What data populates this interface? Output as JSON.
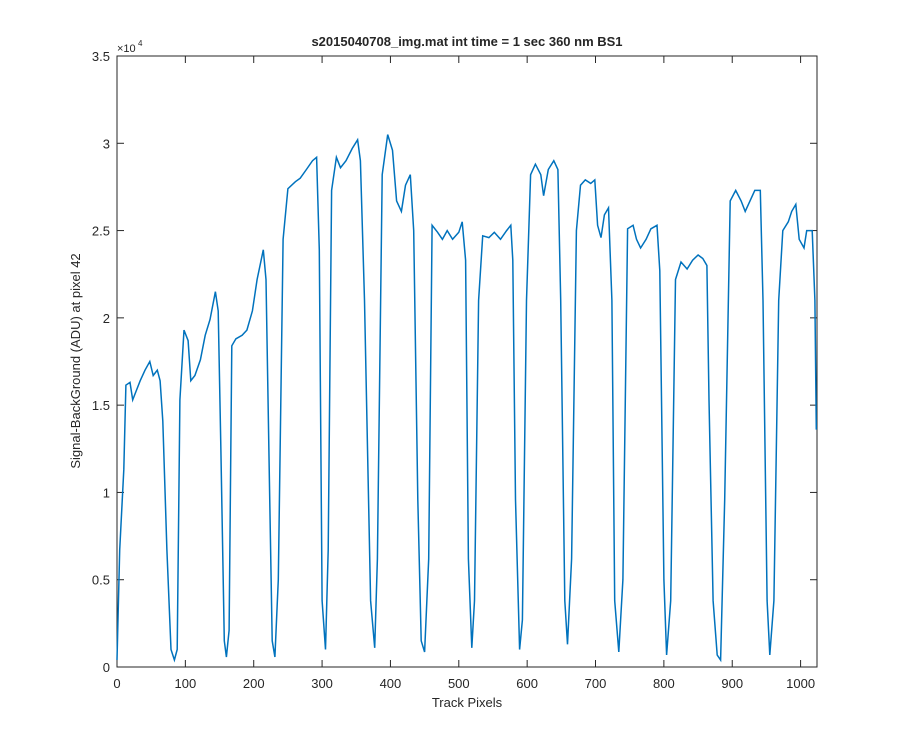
{
  "chart_data": {
    "type": "line",
    "title": "s2015040708_img.mat int time = 1 sec  360 nm BS1",
    "x_label": "Track Pixels",
    "y_label": "Signal-BackGround (ADU) at pixel 42",
    "y_multiplier": "×10",
    "y_multiplier_exponent": "4",
    "xlim": [
      0,
      1024
    ],
    "ylim": [
      0,
      35000
    ],
    "xticks": [
      0,
      100,
      200,
      300,
      400,
      500,
      600,
      700,
      800,
      900,
      1000
    ],
    "yticks": [
      {
        "value": 0,
        "label": "0"
      },
      {
        "value": 5000,
        "label": "0.5"
      },
      {
        "value": 10000,
        "label": "1"
      },
      {
        "value": 15000,
        "label": "1.5"
      },
      {
        "value": 20000,
        "label": "2"
      },
      {
        "value": 25000,
        "label": "2.5"
      },
      {
        "value": 30000,
        "label": "3"
      },
      {
        "value": 35000,
        "label": "3.5"
      }
    ],
    "series": [
      {
        "color": "#0072bd",
        "x": [
          0,
          4,
          10,
          13,
          19,
          23,
          29,
          34,
          41,
          48,
          53,
          59,
          63,
          67,
          73,
          79,
          84,
          88,
          92,
          98,
          104,
          108,
          114,
          122,
          129,
          136,
          144,
          148,
          152,
          157,
          160,
          164,
          168,
          174,
          183,
          190,
          198,
          205,
          214,
          218,
          223,
          227,
          231,
          236,
          243,
          250,
          261,
          268,
          277,
          286,
          292,
          296,
          300,
          305,
          309,
          314,
          321,
          327,
          335,
          344,
          352,
          356,
          362,
          371,
          377,
          381,
          388,
          396,
          403,
          409,
          416,
          422,
          429,
          434,
          440,
          445,
          450,
          456,
          461,
          469,
          476,
          483,
          491,
          500,
          505,
          510,
          514,
          519,
          523,
          529,
          535,
          544,
          552,
          561,
          570,
          576,
          579,
          583,
          589,
          593,
          599,
          605,
          612,
          620,
          624,
          631,
          639,
          645,
          649,
          655,
          659,
          665,
          672,
          678,
          685,
          693,
          699,
          703,
          708,
          713,
          719,
          724,
          728,
          734,
          740,
          747,
          755,
          760,
          766,
          774,
          781,
          790,
          794,
          800,
          804,
          810,
          817,
          825,
          834,
          842,
          850,
          857,
          863,
          866,
          872,
          878,
          883,
          889,
          897,
          905,
          913,
          919,
          926,
          933,
          941,
          945,
          951,
          955,
          961,
          968,
          974,
          982,
          987,
          993,
          998,
          1005,
          1009,
          1017,
          1021,
          1023
        ],
        "values": [
          400,
          6700,
          11300,
          16150,
          16300,
          15300,
          15900,
          16400,
          17000,
          17500,
          16700,
          17000,
          16400,
          14100,
          6700,
          1000,
          400,
          1000,
          15300,
          19300,
          18700,
          16400,
          16700,
          17600,
          19000,
          19900,
          21500,
          20400,
          12400,
          1500,
          570,
          2100,
          18400,
          18800,
          19000,
          19300,
          20400,
          22200,
          23900,
          22200,
          10700,
          1500,
          570,
          5000,
          24500,
          27400,
          27800,
          28000,
          28500,
          29000,
          29200,
          23900,
          3800,
          1000,
          6700,
          27300,
          29200,
          28600,
          29000,
          29700,
          30200,
          29000,
          21000,
          3800,
          1100,
          6200,
          28200,
          30500,
          29600,
          26700,
          26100,
          27600,
          28200,
          25000,
          9600,
          1500,
          860,
          6200,
          25300,
          24900,
          24500,
          25000,
          24500,
          24900,
          25500,
          23300,
          6200,
          1100,
          3800,
          21000,
          24700,
          24600,
          24900,
          24500,
          25000,
          25300,
          23300,
          9600,
          1000,
          2700,
          21000,
          28200,
          28800,
          28200,
          27000,
          28500,
          29000,
          28500,
          21000,
          3800,
          1300,
          6200,
          25000,
          27600,
          27900,
          27700,
          27900,
          25300,
          24600,
          25900,
          26300,
          21000,
          3800,
          860,
          5000,
          25100,
          25300,
          24500,
          24000,
          24500,
          25100,
          25300,
          22700,
          5000,
          690,
          3800,
          22200,
          23200,
          22800,
          23300,
          23600,
          23400,
          23000,
          15300,
          3800,
          690,
          400,
          9600,
          26700,
          27300,
          26700,
          26100,
          26700,
          27300,
          27300,
          21000,
          3800,
          690,
          3800,
          21000,
          25000,
          25500,
          26100,
          26500,
          24500,
          24000,
          25000,
          25000,
          21000,
          13600
        ]
      }
    ]
  }
}
